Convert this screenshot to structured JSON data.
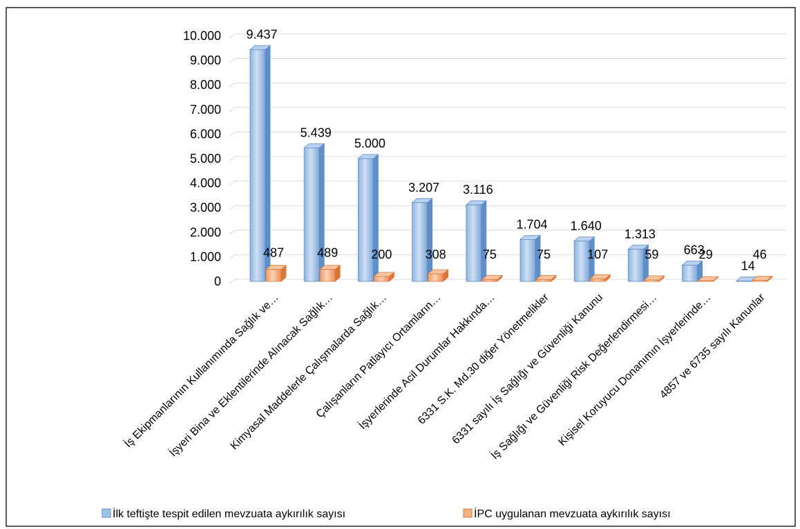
{
  "chart_data": {
    "type": "bar",
    "title": "",
    "xlabel": "",
    "ylabel": "",
    "ylim": [
      0,
      10000
    ],
    "yticks": [
      "0",
      "1.000",
      "2.000",
      "3.000",
      "4.000",
      "5.000",
      "6.000",
      "7.000",
      "8.000",
      "9.000",
      "10.000"
    ],
    "grid": true,
    "legend_position": "bottom",
    "categories": [
      "İş Ekipmanlarının Kullanımında Sağlık ve…",
      "İşyeri Bina ve Eklentilerinde Alınacak Sağlık…",
      "Kimyasal Maddelerle Çalışmalarda Sağlık…",
      "Çalışanların Patlayıcı Ortamların…",
      "İşyerlerinde Acil Durumlar Hakkında…",
      "6331 S.K. Md.30  diğer Yönetmelikler",
      "6331 sayılı İş Sağlığı ve Güvenliği Kanunu",
      "İş Sağlığı ve Güvenliği Risk Değerlendirmesi…",
      "Kişisel Koruyucu Donanımın İşyerlerinde…",
      "4857 ve 6735 sayılı Kanunlar"
    ],
    "series": [
      {
        "name": "İlk teftişte tespit edilen mevzuata aykırılık sayısı",
        "color": "#9dc3e6",
        "values": [
          9437,
          5439,
          5000,
          3207,
          3116,
          1704,
          1640,
          1313,
          663,
          14
        ],
        "labels": [
          "9.437",
          "5.439",
          "5.000",
          "3.207",
          "3.116",
          "1.704",
          "1.640",
          "1.313",
          "663",
          "14"
        ]
      },
      {
        "name": "İPC uygulanan mevzuata aykırılık sayısı",
        "color": "#f4b183",
        "values": [
          487,
          489,
          200,
          308,
          75,
          75,
          107,
          59,
          29,
          46
        ],
        "labels": [
          "487",
          "489",
          "200",
          "308",
          "75",
          "75",
          "107",
          "59",
          "29",
          "46"
        ]
      }
    ]
  }
}
